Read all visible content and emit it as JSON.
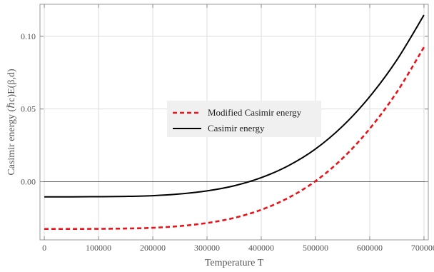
{
  "chart_data": {
    "type": "line",
    "title": "",
    "xlabel": "Temperature T",
    "ylabel": "Casimir energy (ℏc)E(β,d)",
    "xlim": [
      -8000,
      708000
    ],
    "ylim": [
      -0.04,
      0.122
    ],
    "x_ticks": [
      0,
      100000,
      200000,
      300000,
      400000,
      500000,
      600000,
      700000
    ],
    "x_tick_labels": [
      "0",
      "100000",
      "200000",
      "300000",
      "400000",
      "500000",
      "600000",
      "700000"
    ],
    "y_ticks": [
      0.0,
      0.05,
      0.1
    ],
    "y_tick_labels": [
      "0.00",
      "0.05",
      "0.10"
    ],
    "grid": true,
    "legend_position": "center",
    "zero_line": true,
    "series": [
      {
        "name": "Modified Casimir energy",
        "color": "#e8141a",
        "style": "dashed",
        "x": [
          0,
          50000,
          100000,
          150000,
          200000,
          250000,
          300000,
          350000,
          400000,
          450000,
          500000,
          550000,
          600000,
          650000,
          700000
        ],
        "y": [
          -0.0325,
          -0.0325,
          -0.0324,
          -0.0322,
          -0.0317,
          -0.0305,
          -0.0284,
          -0.0249,
          -0.0193,
          -0.0111,
          0.0004,
          0.0161,
          0.0364,
          0.0616,
          0.0925
        ]
      },
      {
        "name": "Casimir energy",
        "color": "#000000",
        "style": "solid",
        "x": [
          0,
          50000,
          100000,
          150000,
          200000,
          250000,
          300000,
          350000,
          400000,
          450000,
          500000,
          550000,
          600000,
          650000,
          700000
        ],
        "y": [
          -0.0104,
          -0.0104,
          -0.0103,
          -0.0101,
          -0.0096,
          -0.0084,
          -0.0063,
          -0.0028,
          0.0028,
          0.011,
          0.0225,
          0.0382,
          0.0585,
          0.0837,
          0.1146
        ]
      }
    ]
  }
}
